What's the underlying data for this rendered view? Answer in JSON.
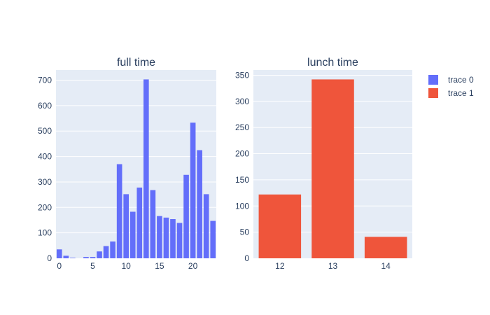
{
  "chart_data": [
    {
      "type": "bar",
      "title": "full time",
      "series_name": "trace 0",
      "x": [
        0,
        1,
        2,
        3,
        4,
        5,
        6,
        7,
        8,
        9,
        10,
        11,
        12,
        13,
        14,
        15,
        16,
        17,
        18,
        19,
        20,
        21,
        22,
        23
      ],
      "values": [
        35,
        10,
        2,
        0,
        5,
        5,
        27,
        48,
        66,
        370,
        252,
        183,
        278,
        703,
        268,
        166,
        160,
        154,
        139,
        328,
        533,
        425,
        252,
        147
      ],
      "xlim": [
        -0.5,
        23.5
      ],
      "ylim": [
        0,
        740
      ],
      "xticks": [
        0,
        5,
        10,
        15,
        20
      ],
      "yticks": [
        0,
        100,
        200,
        300,
        400,
        500,
        600,
        700
      ],
      "color": "#636efa"
    },
    {
      "type": "bar",
      "title": "lunch time",
      "series_name": "trace 1",
      "x": [
        12,
        13,
        14
      ],
      "values": [
        122,
        342,
        41
      ],
      "xlim": [
        11.5,
        14.5
      ],
      "ylim": [
        0,
        360
      ],
      "xticks": [
        12,
        13,
        14
      ],
      "yticks": [
        0,
        50,
        100,
        150,
        200,
        250,
        300,
        350
      ],
      "color": "#ef553b"
    }
  ],
  "legend": {
    "placement": "top-right",
    "items": [
      {
        "label": "trace 0",
        "color": "#636efa"
      },
      {
        "label": "trace 1",
        "color": "#ef553b"
      }
    ]
  },
  "colors": {
    "plot_bg": "#e5ecf6",
    "grid": "#ffffff",
    "text": "#2a3f5f"
  }
}
